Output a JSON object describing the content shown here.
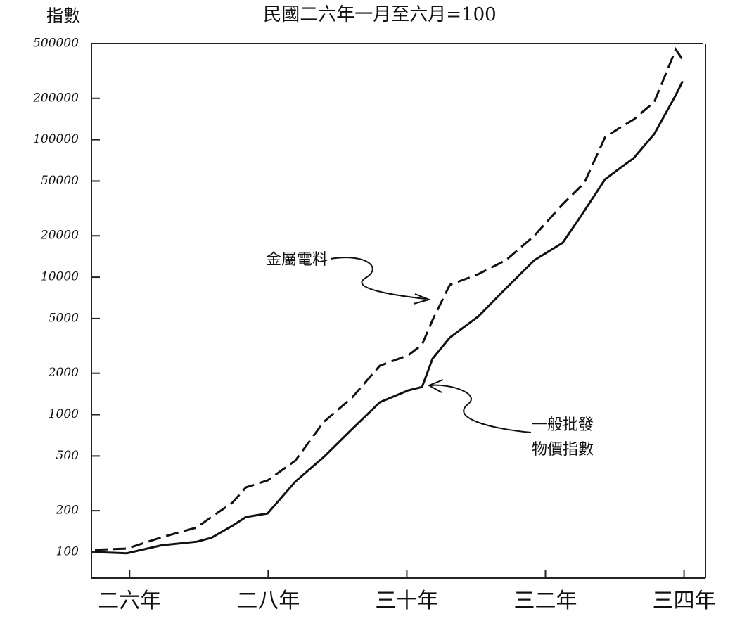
{
  "chart_data": {
    "type": "line",
    "title": "民國二六年一月至六月=100",
    "y_label": "指數",
    "log_y": true,
    "x": [
      26.0,
      26.46,
      26.96,
      27.47,
      27.68,
      27.98,
      28.18,
      28.49,
      28.89,
      29.3,
      29.71,
      30.11,
      30.52,
      30.72,
      30.87,
      31.12,
      31.53,
      31.93,
      32.34,
      32.75,
      33.06,
      33.36,
      33.56,
      33.77,
      34.07,
      34.38,
      34.48
    ],
    "xlim": [
      26,
      34.9
    ],
    "xticks": [
      {
        "value": 26.5,
        "label": "二六年"
      },
      {
        "value": 28.5,
        "label": "二八年"
      },
      {
        "value": 30.5,
        "label": "三十年"
      },
      {
        "value": 32.5,
        "label": "三二年"
      },
      {
        "value": 34.5,
        "label": "三四年"
      }
    ],
    "ylim": [
      100,
      500000
    ],
    "yticks": [
      100,
      200,
      500,
      1000,
      2000,
      5000,
      10000,
      20000,
      50000,
      100000,
      200000,
      500000
    ],
    "series": [
      {
        "name": "金屬電料",
        "color": "#111111",
        "style": "dashed",
        "values": [
          104,
          106,
          128,
          151,
          180,
          228,
          296,
          332,
          462,
          884,
          1330,
          2270,
          2700,
          3230,
          4870,
          8790,
          10500,
          13300,
          20000,
          34000,
          48400,
          104000,
          121000,
          140000,
          188000,
          454000,
          381000
        ]
      },
      {
        "name": "一般批發物價指數",
        "color": "#111111",
        "style": "solid",
        "values": [
          100,
          98,
          112,
          119,
          127,
          155,
          180,
          191,
          325,
          491,
          785,
          1230,
          1500,
          1590,
          2550,
          3630,
          5170,
          8280,
          13300,
          17800,
          30300,
          51400,
          61300,
          73200,
          110000,
          211000,
          267000
        ]
      }
    ],
    "annotations": [
      "金屬電料",
      "一般批發",
      "物價指數"
    ]
  }
}
